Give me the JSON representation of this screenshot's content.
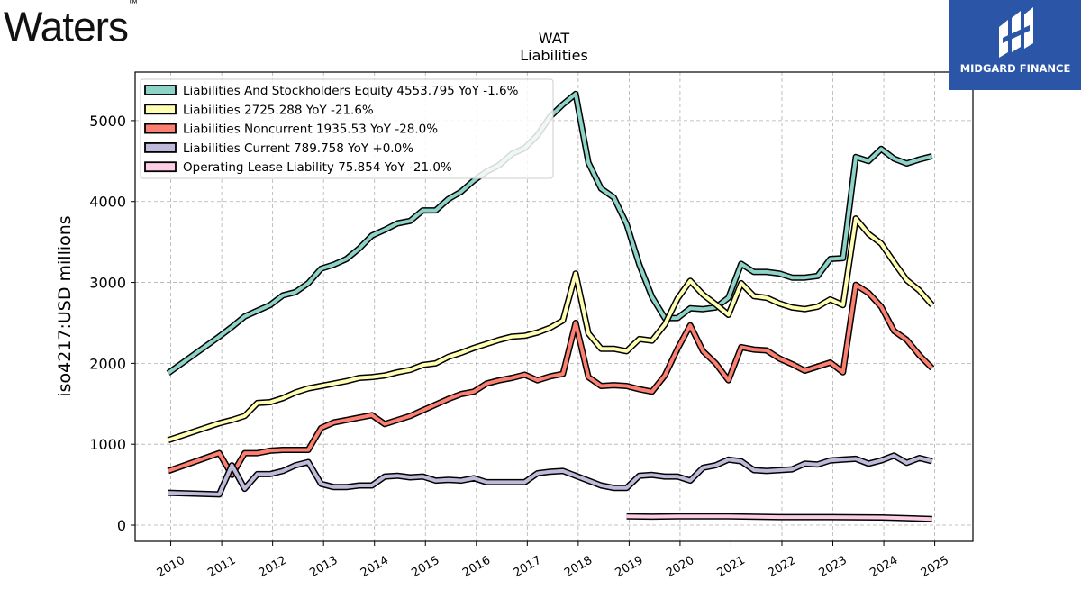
{
  "brand": {
    "logo_text": "Waters",
    "trademark": "™"
  },
  "partner": {
    "name": "MIDGARD FINANCE",
    "icon": "midgard-logo-icon"
  },
  "chart_data": {
    "type": "line",
    "title": "WAT",
    "subtitle": "Liabilities",
    "ylabel": "iso4217:USD  millions",
    "xlabel": "",
    "ylim": [
      -200,
      5600
    ],
    "xlim": [
      2009.3,
      2025.75
    ],
    "yticks": [
      0,
      1000,
      2000,
      3000,
      4000,
      5000
    ],
    "xticks": [
      "2010",
      "2011",
      "2012",
      "2013",
      "2014",
      "2015",
      "2016",
      "2017",
      "2018",
      "2019",
      "2020",
      "2021",
      "2022",
      "2023",
      "2024",
      "2025"
    ],
    "grid": true,
    "legend_position": "top-left",
    "series": [
      {
        "name": "Liabilities And Stockholders Equity",
        "legend_label": "Liabilities And Stockholders Equity  4553.795 YoY -1.6%",
        "color": "#8dd3c7",
        "points": [
          [
            2009.95,
            1880
          ],
          [
            2010.95,
            2330
          ],
          [
            2011.2,
            2450
          ],
          [
            2011.45,
            2580
          ],
          [
            2011.7,
            2650
          ],
          [
            2011.95,
            2720
          ],
          [
            2012.2,
            2840
          ],
          [
            2012.45,
            2880
          ],
          [
            2012.7,
            2990
          ],
          [
            2012.95,
            3170
          ],
          [
            2013.2,
            3220
          ],
          [
            2013.45,
            3290
          ],
          [
            2013.7,
            3420
          ],
          [
            2013.95,
            3580
          ],
          [
            2014.2,
            3650
          ],
          [
            2014.45,
            3730
          ],
          [
            2014.7,
            3760
          ],
          [
            2014.95,
            3890
          ],
          [
            2015.2,
            3890
          ],
          [
            2015.45,
            4030
          ],
          [
            2015.7,
            4120
          ],
          [
            2015.95,
            4260
          ],
          [
            2016.2,
            4370
          ],
          [
            2016.45,
            4450
          ],
          [
            2016.7,
            4590
          ],
          [
            2016.95,
            4660
          ],
          [
            2017.2,
            4820
          ],
          [
            2017.45,
            5050
          ],
          [
            2017.7,
            5200
          ],
          [
            2017.95,
            5330
          ],
          [
            2018.2,
            4480
          ],
          [
            2018.45,
            4160
          ],
          [
            2018.7,
            4050
          ],
          [
            2018.95,
            3720
          ],
          [
            2019.2,
            3220
          ],
          [
            2019.45,
            2820
          ],
          [
            2019.7,
            2560
          ],
          [
            2019.95,
            2560
          ],
          [
            2020.2,
            2680
          ],
          [
            2020.45,
            2670
          ],
          [
            2020.7,
            2690
          ],
          [
            2020.95,
            2810
          ],
          [
            2021.2,
            3230
          ],
          [
            2021.45,
            3130
          ],
          [
            2021.7,
            3130
          ],
          [
            2021.95,
            3110
          ],
          [
            2022.2,
            3060
          ],
          [
            2022.45,
            3060
          ],
          [
            2022.7,
            3080
          ],
          [
            2022.95,
            3290
          ],
          [
            2023.2,
            3300
          ],
          [
            2023.45,
            4550
          ],
          [
            2023.7,
            4500
          ],
          [
            2023.95,
            4650
          ],
          [
            2024.2,
            4530
          ],
          [
            2024.45,
            4470
          ],
          [
            2024.7,
            4520
          ],
          [
            2024.95,
            4560
          ]
        ]
      },
      {
        "name": "Liabilities",
        "legend_label": "Liabilities  2725.288 YoY -21.6%",
        "color": "#ffffb3",
        "points": [
          [
            2009.95,
            1050
          ],
          [
            2010.95,
            1260
          ],
          [
            2011.2,
            1300
          ],
          [
            2011.45,
            1350
          ],
          [
            2011.7,
            1510
          ],
          [
            2011.95,
            1520
          ],
          [
            2012.2,
            1570
          ],
          [
            2012.45,
            1640
          ],
          [
            2012.7,
            1690
          ],
          [
            2012.95,
            1720
          ],
          [
            2013.2,
            1750
          ],
          [
            2013.45,
            1780
          ],
          [
            2013.7,
            1820
          ],
          [
            2013.95,
            1830
          ],
          [
            2014.2,
            1850
          ],
          [
            2014.45,
            1890
          ],
          [
            2014.7,
            1920
          ],
          [
            2014.95,
            1980
          ],
          [
            2015.2,
            2000
          ],
          [
            2015.45,
            2080
          ],
          [
            2015.7,
            2130
          ],
          [
            2015.95,
            2190
          ],
          [
            2016.2,
            2240
          ],
          [
            2016.45,
            2290
          ],
          [
            2016.7,
            2330
          ],
          [
            2016.95,
            2340
          ],
          [
            2017.2,
            2380
          ],
          [
            2017.45,
            2440
          ],
          [
            2017.7,
            2530
          ],
          [
            2017.95,
            3110
          ],
          [
            2018.2,
            2370
          ],
          [
            2018.45,
            2180
          ],
          [
            2018.7,
            2180
          ],
          [
            2018.95,
            2150
          ],
          [
            2019.2,
            2300
          ],
          [
            2019.45,
            2280
          ],
          [
            2019.7,
            2480
          ],
          [
            2019.95,
            2800
          ],
          [
            2020.2,
            3020
          ],
          [
            2020.45,
            2850
          ],
          [
            2020.7,
            2730
          ],
          [
            2020.95,
            2600
          ],
          [
            2021.2,
            2990
          ],
          [
            2021.45,
            2830
          ],
          [
            2021.7,
            2810
          ],
          [
            2021.95,
            2740
          ],
          [
            2022.2,
            2690
          ],
          [
            2022.45,
            2670
          ],
          [
            2022.7,
            2700
          ],
          [
            2022.95,
            2790
          ],
          [
            2023.2,
            2720
          ],
          [
            2023.45,
            3790
          ],
          [
            2023.7,
            3600
          ],
          [
            2023.95,
            3480
          ],
          [
            2024.2,
            3250
          ],
          [
            2024.45,
            3030
          ],
          [
            2024.7,
            2900
          ],
          [
            2024.95,
            2720
          ]
        ]
      },
      {
        "name": "Liabilities Noncurrent",
        "legend_label": "Liabilities Noncurrent  1935.53 YoY -28.0%",
        "color": "#fb8072",
        "points": [
          [
            2009.95,
            670
          ],
          [
            2010.95,
            890
          ],
          [
            2011.2,
            620
          ],
          [
            2011.45,
            890
          ],
          [
            2011.7,
            890
          ],
          [
            2011.95,
            920
          ],
          [
            2012.2,
            930
          ],
          [
            2012.45,
            930
          ],
          [
            2012.7,
            930
          ],
          [
            2012.95,
            1200
          ],
          [
            2013.2,
            1270
          ],
          [
            2013.45,
            1300
          ],
          [
            2013.7,
            1330
          ],
          [
            2013.95,
            1360
          ],
          [
            2014.2,
            1250
          ],
          [
            2014.45,
            1300
          ],
          [
            2014.7,
            1350
          ],
          [
            2014.95,
            1420
          ],
          [
            2015.2,
            1490
          ],
          [
            2015.45,
            1560
          ],
          [
            2015.7,
            1620
          ],
          [
            2015.95,
            1650
          ],
          [
            2016.2,
            1750
          ],
          [
            2016.45,
            1790
          ],
          [
            2016.7,
            1820
          ],
          [
            2016.95,
            1860
          ],
          [
            2017.2,
            1790
          ],
          [
            2017.45,
            1840
          ],
          [
            2017.7,
            1870
          ],
          [
            2017.95,
            2500
          ],
          [
            2018.2,
            1830
          ],
          [
            2018.45,
            1720
          ],
          [
            2018.7,
            1730
          ],
          [
            2018.95,
            1720
          ],
          [
            2019.2,
            1680
          ],
          [
            2019.45,
            1650
          ],
          [
            2019.7,
            1850
          ],
          [
            2019.95,
            2180
          ],
          [
            2020.2,
            2470
          ],
          [
            2020.45,
            2150
          ],
          [
            2020.7,
            2000
          ],
          [
            2020.95,
            1790
          ],
          [
            2021.2,
            2200
          ],
          [
            2021.45,
            2170
          ],
          [
            2021.7,
            2160
          ],
          [
            2021.95,
            2060
          ],
          [
            2022.2,
            1990
          ],
          [
            2022.45,
            1910
          ],
          [
            2022.7,
            1960
          ],
          [
            2022.95,
            2010
          ],
          [
            2023.2,
            1890
          ],
          [
            2023.45,
            2970
          ],
          [
            2023.7,
            2870
          ],
          [
            2023.95,
            2700
          ],
          [
            2024.2,
            2400
          ],
          [
            2024.45,
            2290
          ],
          [
            2024.7,
            2100
          ],
          [
            2024.95,
            1940
          ]
        ]
      },
      {
        "name": "Liabilities Current",
        "legend_label": "Liabilities Current  789.758 YoY +0.0%",
        "color": "#bebada",
        "points": [
          [
            2009.95,
            400
          ],
          [
            2010.95,
            380
          ],
          [
            2011.2,
            740
          ],
          [
            2011.45,
            450
          ],
          [
            2011.7,
            630
          ],
          [
            2011.95,
            630
          ],
          [
            2012.2,
            670
          ],
          [
            2012.45,
            740
          ],
          [
            2012.7,
            780
          ],
          [
            2012.95,
            510
          ],
          [
            2013.2,
            470
          ],
          [
            2013.45,
            470
          ],
          [
            2013.7,
            490
          ],
          [
            2013.95,
            490
          ],
          [
            2014.2,
            600
          ],
          [
            2014.45,
            610
          ],
          [
            2014.7,
            590
          ],
          [
            2014.95,
            600
          ],
          [
            2015.2,
            550
          ],
          [
            2015.45,
            560
          ],
          [
            2015.7,
            550
          ],
          [
            2015.95,
            580
          ],
          [
            2016.2,
            530
          ],
          [
            2016.45,
            530
          ],
          [
            2016.7,
            530
          ],
          [
            2016.95,
            530
          ],
          [
            2017.2,
            640
          ],
          [
            2017.45,
            660
          ],
          [
            2017.7,
            670
          ],
          [
            2017.95,
            610
          ],
          [
            2018.2,
            550
          ],
          [
            2018.45,
            490
          ],
          [
            2018.7,
            460
          ],
          [
            2018.95,
            460
          ],
          [
            2019.2,
            610
          ],
          [
            2019.45,
            620
          ],
          [
            2019.7,
            600
          ],
          [
            2019.95,
            600
          ],
          [
            2020.2,
            550
          ],
          [
            2020.45,
            710
          ],
          [
            2020.7,
            740
          ],
          [
            2020.95,
            810
          ],
          [
            2021.2,
            790
          ],
          [
            2021.45,
            680
          ],
          [
            2021.7,
            670
          ],
          [
            2021.95,
            680
          ],
          [
            2022.2,
            690
          ],
          [
            2022.45,
            760
          ],
          [
            2022.7,
            750
          ],
          [
            2022.95,
            800
          ],
          [
            2023.2,
            810
          ],
          [
            2023.45,
            820
          ],
          [
            2023.7,
            760
          ],
          [
            2023.95,
            800
          ],
          [
            2024.2,
            860
          ],
          [
            2024.45,
            770
          ],
          [
            2024.7,
            830
          ],
          [
            2024.95,
            790
          ]
        ]
      },
      {
        "name": "Operating Lease Liability",
        "legend_label": "Operating Lease Liability  75.854 YoY -21.0%",
        "color": "#fccde5",
        "points": [
          [
            2018.95,
            110
          ],
          [
            2019.45,
            105
          ],
          [
            2019.95,
            110
          ],
          [
            2020.95,
            110
          ],
          [
            2021.95,
            100
          ],
          [
            2022.95,
            100
          ],
          [
            2023.95,
            95
          ],
          [
            2024.95,
            76
          ]
        ]
      }
    ]
  }
}
